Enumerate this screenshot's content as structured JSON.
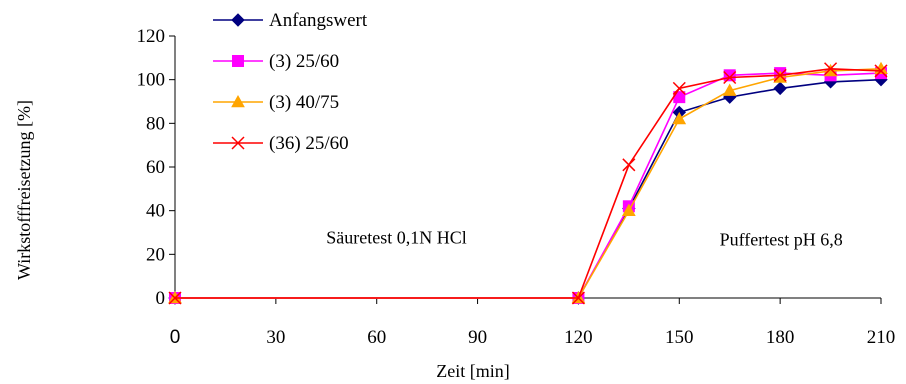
{
  "chart_data": {
    "type": "line",
    "xlabel": "Zeit [min]",
    "ylabel": "Wirkstofffreisetzung [%]",
    "xlim": [
      0,
      210
    ],
    "ylim": [
      0,
      120
    ],
    "xticks": [
      0,
      30,
      60,
      90,
      120,
      150,
      180,
      210
    ],
    "yticks": [
      0,
      20,
      40,
      60,
      80,
      100,
      120
    ],
    "grid": false,
    "legend_position": "top-left",
    "series": [
      {
        "name": "Anfangswert",
        "color": "#000080",
        "marker": "diamond",
        "points": [
          [
            0,
            0
          ],
          [
            120,
            0
          ],
          [
            135,
            41
          ],
          [
            150,
            85
          ],
          [
            165,
            92
          ],
          [
            180,
            96
          ],
          [
            195,
            99
          ],
          [
            210,
            100
          ]
        ]
      },
      {
        "name": "(3) 25/60",
        "color": "#FF00FF",
        "marker": "square",
        "points": [
          [
            0,
            0
          ],
          [
            120,
            0
          ],
          [
            135,
            42
          ],
          [
            150,
            92
          ],
          [
            165,
            102
          ],
          [
            180,
            103
          ],
          [
            195,
            102
          ],
          [
            210,
            103
          ]
        ]
      },
      {
        "name": "(3) 40/75",
        "color": "#FFA500",
        "marker": "triangle",
        "points": [
          [
            0,
            0
          ],
          [
            120,
            0
          ],
          [
            135,
            40
          ],
          [
            150,
            82
          ],
          [
            165,
            95
          ],
          [
            180,
            101
          ],
          [
            195,
            104
          ],
          [
            210,
            105
          ]
        ]
      },
      {
        "name": "(36) 25/60",
        "color": "#FF0000",
        "marker": "x",
        "points": [
          [
            0,
            0
          ],
          [
            120,
            0
          ],
          [
            135,
            61
          ],
          [
            150,
            96
          ],
          [
            165,
            101
          ],
          [
            180,
            102
          ],
          [
            195,
            105
          ],
          [
            210,
            104
          ]
        ]
      }
    ],
    "annotations": [
      {
        "text": "Säuretest 0,1N HCl",
        "x": 45,
        "y": 25
      },
      {
        "text": "Puffertest pH 6,8",
        "x": 162,
        "y": 24
      }
    ]
  }
}
